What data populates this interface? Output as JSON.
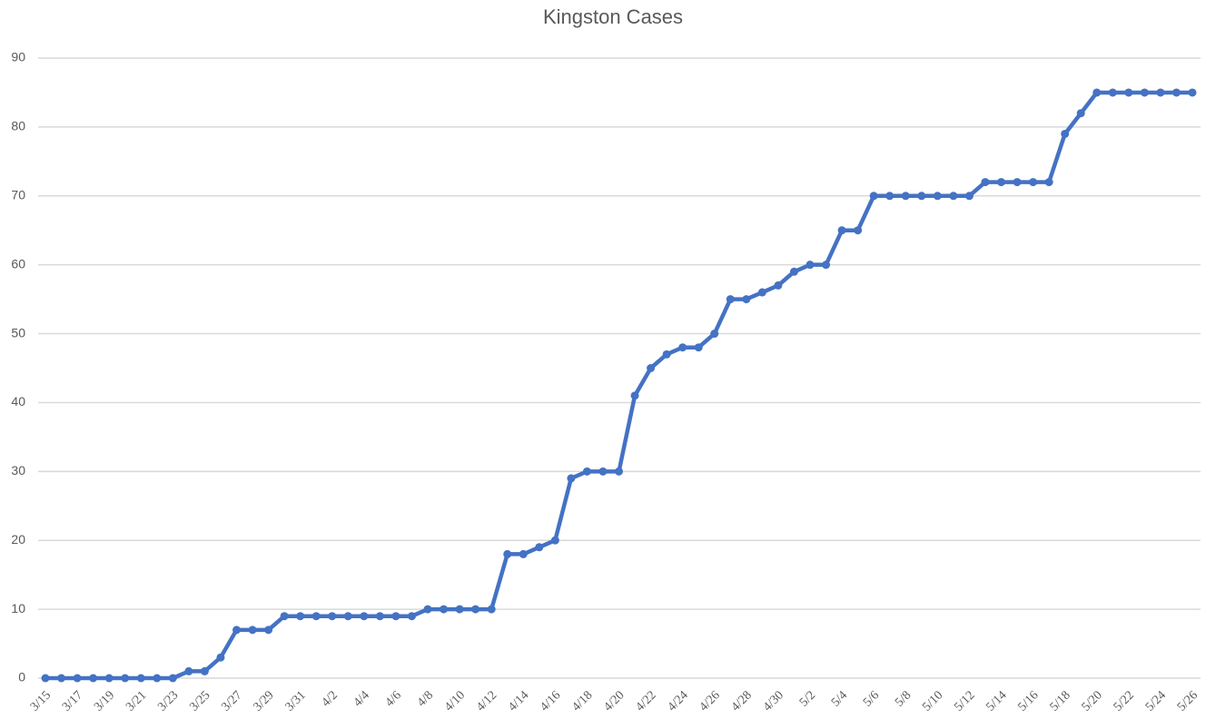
{
  "chart_data": {
    "type": "line",
    "title": "Kingston Cases",
    "categories": [
      "3/15",
      null,
      "3/17",
      null,
      "3/19",
      null,
      "3/21",
      null,
      "3/23",
      null,
      "3/25",
      null,
      "3/27",
      null,
      "3/29",
      null,
      "3/31",
      null,
      "4/2",
      null,
      "4/4",
      null,
      "4/6",
      null,
      "4/8",
      null,
      "4/10",
      null,
      "4/12",
      null,
      "4/14",
      null,
      "4/16",
      null,
      "4/18",
      null,
      "4/20",
      null,
      "4/22",
      null,
      "4/24",
      null,
      "4/26",
      null,
      "4/28",
      null,
      "4/30",
      null,
      "5/2",
      null,
      "5/4",
      null,
      "5/6",
      null,
      "5/8",
      null,
      "5/10",
      null,
      "5/12",
      null,
      "5/14",
      null,
      "5/16",
      null,
      "5/18",
      null,
      "5/20",
      null,
      "5/22",
      null,
      "5/24",
      null,
      "5/26"
    ],
    "series": [
      {
        "color": "#4472c4",
        "values": [
          0,
          0,
          0,
          0,
          0,
          0,
          0,
          0,
          0,
          1,
          1,
          3,
          7,
          7,
          7,
          9,
          9,
          9,
          9,
          9,
          9,
          9,
          9,
          9,
          10,
          10,
          10,
          10,
          10,
          18,
          18,
          19,
          20,
          29,
          30,
          30,
          30,
          41,
          45,
          47,
          48,
          48,
          50,
          55,
          55,
          56,
          57,
          59,
          60,
          60,
          65,
          65,
          70,
          70,
          70,
          70,
          70,
          70,
          70,
          72,
          72,
          72,
          72,
          72,
          79,
          82,
          85,
          85,
          85,
          85,
          85,
          85,
          85
        ]
      }
    ],
    "ylim": [
      0,
      90
    ],
    "yticks": [
      0,
      10,
      20,
      30,
      40,
      50,
      60,
      70,
      80,
      90
    ],
    "grid": true
  }
}
